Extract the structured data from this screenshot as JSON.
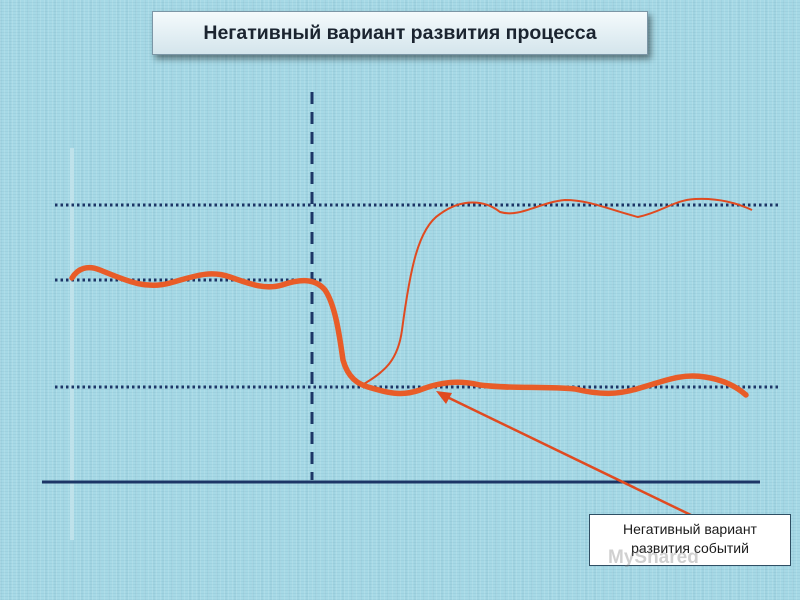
{
  "title": "Негативный вариант развития процесса",
  "callout": {
    "line1": "Негативный вариант",
    "line2": "развития событий"
  },
  "watermark": "MyShared",
  "colors": {
    "background": "#a6d9e6",
    "curve": "#e85c28",
    "dotted_lines": "#1c3566",
    "baseline": "#1c3566",
    "divider": "#1c3566"
  }
}
